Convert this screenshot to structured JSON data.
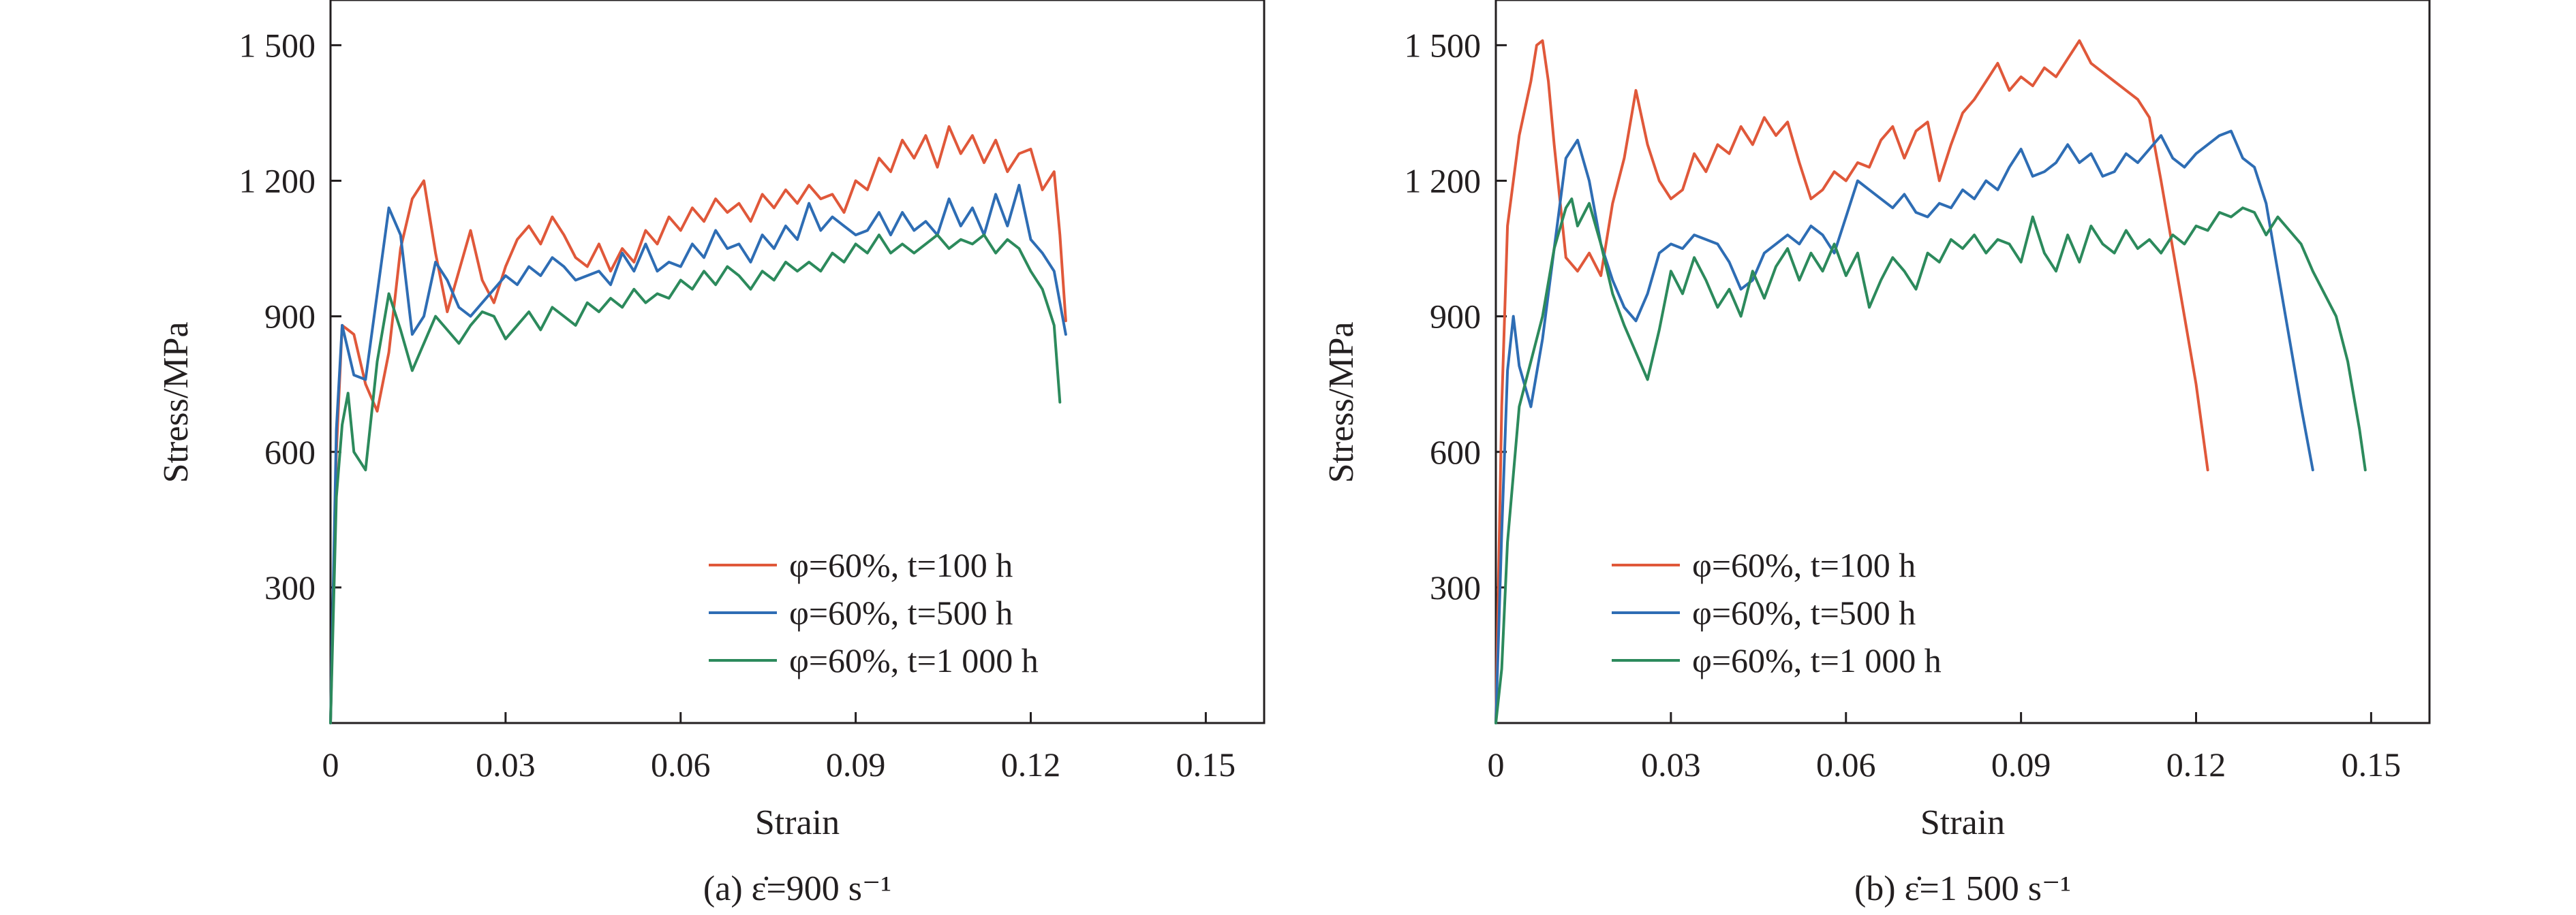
{
  "chart_data": [
    {
      "type": "line",
      "caption": "(a) ε̇=900 s⁻¹",
      "xlabel": "Strain",
      "ylabel": "Stress/MPa",
      "xlim": [
        0,
        0.16
      ],
      "ylim": [
        0,
        1600
      ],
      "xticks": [
        0,
        0.03,
        0.06,
        0.09,
        0.12,
        0.15
      ],
      "xtick_labels": [
        "0",
        "0.03",
        "0.06",
        "0.09",
        "0.12",
        "0.15"
      ],
      "yticks": [
        300,
        600,
        900,
        1200,
        1500
      ],
      "ytick_labels": [
        "300",
        "600",
        "900",
        "1 200",
        "1 500"
      ],
      "legend_position": "lower-right",
      "series": [
        {
          "name": "φ=60%, t=100 h",
          "color": "#e0583a",
          "x": [
            0,
            0.001,
            0.002,
            0.004,
            0.006,
            0.008,
            0.01,
            0.012,
            0.014,
            0.016,
            0.018,
            0.02,
            0.022,
            0.024,
            0.026,
            0.028,
            0.03,
            0.032,
            0.034,
            0.036,
            0.038,
            0.04,
            0.042,
            0.044,
            0.046,
            0.048,
            0.05,
            0.052,
            0.054,
            0.056,
            0.058,
            0.06,
            0.062,
            0.064,
            0.066,
            0.068,
            0.07,
            0.072,
            0.074,
            0.076,
            0.078,
            0.08,
            0.082,
            0.084,
            0.086,
            0.088,
            0.09,
            0.092,
            0.094,
            0.096,
            0.098,
            0.1,
            0.102,
            0.104,
            0.106,
            0.108,
            0.11,
            0.112,
            0.114,
            0.116,
            0.118,
            0.12,
            0.122,
            0.124,
            0.125,
            0.126
          ],
          "y": [
            0,
            600,
            880,
            860,
            750,
            690,
            820,
            1050,
            1160,
            1200,
            1040,
            910,
            1000,
            1090,
            980,
            930,
            1010,
            1070,
            1100,
            1060,
            1120,
            1080,
            1030,
            1010,
            1060,
            1000,
            1050,
            1020,
            1090,
            1060,
            1120,
            1090,
            1140,
            1110,
            1160,
            1130,
            1150,
            1110,
            1170,
            1140,
            1180,
            1150,
            1190,
            1160,
            1170,
            1130,
            1200,
            1180,
            1250,
            1220,
            1290,
            1250,
            1300,
            1230,
            1320,
            1260,
            1300,
            1240,
            1290,
            1220,
            1260,
            1270,
            1180,
            1220,
            1080,
            890
          ]
        },
        {
          "name": "φ=60%, t=500 h",
          "color": "#2e6db4",
          "x": [
            0,
            0.001,
            0.002,
            0.004,
            0.006,
            0.008,
            0.01,
            0.012,
            0.014,
            0.016,
            0.018,
            0.02,
            0.022,
            0.024,
            0.026,
            0.028,
            0.03,
            0.032,
            0.034,
            0.036,
            0.038,
            0.04,
            0.042,
            0.044,
            0.046,
            0.048,
            0.05,
            0.052,
            0.054,
            0.056,
            0.058,
            0.06,
            0.062,
            0.064,
            0.066,
            0.068,
            0.07,
            0.072,
            0.074,
            0.076,
            0.078,
            0.08,
            0.082,
            0.084,
            0.086,
            0.088,
            0.09,
            0.092,
            0.094,
            0.096,
            0.098,
            0.1,
            0.102,
            0.104,
            0.106,
            0.108,
            0.11,
            0.112,
            0.114,
            0.116,
            0.118,
            0.12,
            0.122,
            0.124,
            0.126
          ],
          "y": [
            0,
            650,
            880,
            770,
            760,
            950,
            1140,
            1080,
            860,
            900,
            1020,
            980,
            920,
            900,
            930,
            960,
            990,
            970,
            1010,
            990,
            1030,
            1010,
            980,
            990,
            1000,
            970,
            1040,
            1000,
            1060,
            1000,
            1020,
            1010,
            1060,
            1030,
            1090,
            1050,
            1060,
            1020,
            1080,
            1050,
            1100,
            1070,
            1150,
            1090,
            1120,
            1100,
            1080,
            1090,
            1130,
            1080,
            1130,
            1090,
            1110,
            1080,
            1160,
            1100,
            1140,
            1080,
            1170,
            1100,
            1190,
            1070,
            1040,
            1000,
            860
          ]
        },
        {
          "name": "φ=60%, t=1 000 h",
          "color": "#2c8a5c",
          "x": [
            0,
            0.001,
            0.002,
            0.003,
            0.004,
            0.006,
            0.008,
            0.01,
            0.012,
            0.014,
            0.016,
            0.018,
            0.02,
            0.022,
            0.024,
            0.026,
            0.028,
            0.03,
            0.032,
            0.034,
            0.036,
            0.038,
            0.04,
            0.042,
            0.044,
            0.046,
            0.048,
            0.05,
            0.052,
            0.054,
            0.056,
            0.058,
            0.06,
            0.062,
            0.064,
            0.066,
            0.068,
            0.07,
            0.072,
            0.074,
            0.076,
            0.078,
            0.08,
            0.082,
            0.084,
            0.086,
            0.088,
            0.09,
            0.092,
            0.094,
            0.096,
            0.098,
            0.1,
            0.102,
            0.104,
            0.106,
            0.108,
            0.11,
            0.112,
            0.114,
            0.116,
            0.118,
            0.12,
            0.122,
            0.124,
            0.125
          ],
          "y": [
            0,
            500,
            660,
            730,
            600,
            560,
            800,
            950,
            870,
            780,
            840,
            900,
            870,
            840,
            880,
            910,
            900,
            850,
            880,
            910,
            870,
            920,
            900,
            880,
            930,
            910,
            940,
            920,
            960,
            930,
            950,
            940,
            980,
            960,
            1000,
            970,
            1010,
            990,
            960,
            1000,
            980,
            1020,
            1000,
            1020,
            1000,
            1040,
            1020,
            1060,
            1040,
            1080,
            1040,
            1060,
            1040,
            1060,
            1080,
            1050,
            1070,
            1060,
            1080,
            1040,
            1070,
            1050,
            1000,
            960,
            880,
            710
          ]
        }
      ]
    },
    {
      "type": "line",
      "caption": "(b) ε̇=1 500 s⁻¹",
      "xlabel": "Strain",
      "ylabel": "Stress/MPa",
      "xlim": [
        0,
        0.16
      ],
      "ylim": [
        0,
        1600
      ],
      "xticks": [
        0,
        0.03,
        0.06,
        0.09,
        0.12,
        0.15
      ],
      "xtick_labels": [
        "0",
        "0.03",
        "0.06",
        "0.09",
        "0.12",
        "0.15"
      ],
      "yticks": [
        300,
        600,
        900,
        1200,
        1500
      ],
      "ytick_labels": [
        "300",
        "600",
        "900",
        "1 200",
        "1 500"
      ],
      "legend_position": "lower-center",
      "series": [
        {
          "name": "φ=60%, t=100 h",
          "color": "#e0583a",
          "x": [
            0,
            0.001,
            0.002,
            0.004,
            0.006,
            0.007,
            0.008,
            0.009,
            0.01,
            0.012,
            0.014,
            0.016,
            0.018,
            0.02,
            0.022,
            0.024,
            0.026,
            0.028,
            0.03,
            0.032,
            0.034,
            0.036,
            0.038,
            0.04,
            0.042,
            0.044,
            0.046,
            0.048,
            0.05,
            0.052,
            0.054,
            0.056,
            0.058,
            0.06,
            0.062,
            0.064,
            0.066,
            0.068,
            0.07,
            0.072,
            0.074,
            0.076,
            0.078,
            0.08,
            0.082,
            0.084,
            0.086,
            0.088,
            0.09,
            0.092,
            0.094,
            0.096,
            0.098,
            0.1,
            0.102,
            0.104,
            0.106,
            0.108,
            0.11,
            0.112,
            0.114,
            0.116,
            0.118,
            0.12,
            0.122
          ],
          "y": [
            0,
            700,
            1100,
            1300,
            1420,
            1500,
            1510,
            1420,
            1280,
            1030,
            1000,
            1040,
            990,
            1150,
            1250,
            1400,
            1280,
            1200,
            1160,
            1180,
            1260,
            1220,
            1280,
            1260,
            1320,
            1280,
            1340,
            1300,
            1330,
            1240,
            1160,
            1180,
            1220,
            1200,
            1240,
            1230,
            1290,
            1320,
            1250,
            1310,
            1330,
            1200,
            1280,
            1350,
            1380,
            1420,
            1460,
            1400,
            1430,
            1410,
            1450,
            1430,
            1470,
            1510,
            1460,
            1440,
            1420,
            1400,
            1380,
            1340,
            1200,
            1050,
            900,
            750,
            560
          ]
        },
        {
          "name": "φ=60%, t=500 h",
          "color": "#2e6db4",
          "x": [
            0,
            0.001,
            0.002,
            0.003,
            0.004,
            0.006,
            0.008,
            0.01,
            0.012,
            0.014,
            0.016,
            0.018,
            0.02,
            0.022,
            0.024,
            0.026,
            0.028,
            0.03,
            0.032,
            0.034,
            0.036,
            0.038,
            0.04,
            0.042,
            0.044,
            0.046,
            0.048,
            0.05,
            0.052,
            0.054,
            0.056,
            0.058,
            0.06,
            0.062,
            0.064,
            0.066,
            0.068,
            0.07,
            0.072,
            0.074,
            0.076,
            0.078,
            0.08,
            0.082,
            0.084,
            0.086,
            0.088,
            0.09,
            0.092,
            0.094,
            0.096,
            0.098,
            0.1,
            0.102,
            0.104,
            0.106,
            0.108,
            0.11,
            0.112,
            0.114,
            0.116,
            0.118,
            0.12,
            0.122,
            0.124,
            0.126,
            0.128,
            0.13,
            0.132,
            0.134,
            0.136,
            0.138,
            0.14
          ],
          "y": [
            0,
            420,
            780,
            900,
            790,
            700,
            850,
            1050,
            1250,
            1290,
            1200,
            1060,
            980,
            920,
            890,
            950,
            1040,
            1060,
            1050,
            1080,
            1070,
            1060,
            1020,
            960,
            980,
            1040,
            1060,
            1080,
            1060,
            1100,
            1080,
            1040,
            1120,
            1200,
            1180,
            1160,
            1140,
            1170,
            1130,
            1120,
            1150,
            1140,
            1180,
            1160,
            1200,
            1180,
            1230,
            1270,
            1210,
            1220,
            1240,
            1280,
            1240,
            1260,
            1210,
            1220,
            1260,
            1240,
            1270,
            1300,
            1250,
            1230,
            1260,
            1280,
            1300,
            1310,
            1250,
            1230,
            1150,
            1000,
            850,
            700,
            560
          ]
        },
        {
          "name": "φ=60%, t=1 000 h",
          "color": "#2c8a5c",
          "x": [
            0,
            0.001,
            0.002,
            0.004,
            0.006,
            0.008,
            0.01,
            0.012,
            0.013,
            0.014,
            0.016,
            0.018,
            0.02,
            0.022,
            0.024,
            0.026,
            0.028,
            0.03,
            0.032,
            0.034,
            0.036,
            0.038,
            0.04,
            0.042,
            0.044,
            0.046,
            0.048,
            0.05,
            0.052,
            0.054,
            0.056,
            0.058,
            0.06,
            0.062,
            0.064,
            0.066,
            0.068,
            0.07,
            0.072,
            0.074,
            0.076,
            0.078,
            0.08,
            0.082,
            0.084,
            0.086,
            0.088,
            0.09,
            0.092,
            0.094,
            0.096,
            0.098,
            0.1,
            0.102,
            0.104,
            0.106,
            0.108,
            0.11,
            0.112,
            0.114,
            0.116,
            0.118,
            0.12,
            0.122,
            0.124,
            0.126,
            0.128,
            0.13,
            0.132,
            0.134,
            0.136,
            0.138,
            0.14,
            0.142,
            0.144,
            0.146,
            0.148,
            0.149
          ],
          "y": [
            0,
            120,
            400,
            700,
            800,
            900,
            1050,
            1140,
            1160,
            1100,
            1150,
            1060,
            950,
            880,
            820,
            760,
            870,
            1000,
            950,
            1030,
            980,
            920,
            960,
            900,
            1000,
            940,
            1010,
            1050,
            980,
            1040,
            1000,
            1060,
            990,
            1040,
            920,
            980,
            1030,
            1000,
            960,
            1040,
            1020,
            1070,
            1050,
            1080,
            1040,
            1070,
            1060,
            1020,
            1120,
            1040,
            1000,
            1080,
            1020,
            1100,
            1060,
            1040,
            1090,
            1050,
            1070,
            1040,
            1080,
            1060,
            1100,
            1090,
            1130,
            1120,
            1140,
            1130,
            1080,
            1120,
            1090,
            1060,
            1000,
            950,
            900,
            800,
            650,
            560
          ]
        }
      ]
    }
  ]
}
